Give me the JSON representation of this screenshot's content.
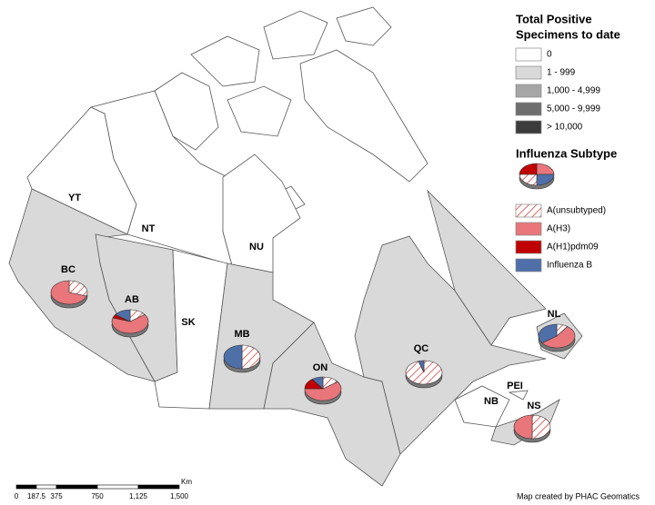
{
  "legend": {
    "title_lines": [
      "Total Positive",
      "Specimens to date"
    ],
    "classes": [
      {
        "label": "0",
        "color": "#ffffff"
      },
      {
        "label": "1 - 999",
        "color": "#d9d9d9"
      },
      {
        "label": "1,000 - 4,999",
        "color": "#a6a6a6"
      },
      {
        "label": "5,000 - 9,999",
        "color": "#6e6e6e"
      },
      {
        "label": "> 10,000",
        "color": "#3c3c3c"
      }
    ],
    "subtype_title": "Influenza Subtype",
    "subtypes": [
      {
        "label": "A(unsubtyped)",
        "color": "#e0443f",
        "hatched": true
      },
      {
        "label": "A(H3)",
        "color": "#e8767a"
      },
      {
        "label": "A(H1)pdm09",
        "color": "#c00000"
      },
      {
        "label": "Influenza B",
        "color": "#4f6fa8"
      }
    ]
  },
  "provinces": [
    {
      "label": "YT",
      "class": 0
    },
    {
      "label": "NT",
      "class": 0
    },
    {
      "label": "NU",
      "class": 0
    },
    {
      "label": "BC",
      "class": 1,
      "shares": [
        30,
        70,
        0,
        0
      ]
    },
    {
      "label": "AB",
      "class": 1,
      "shares": [
        15,
        65,
        5,
        15
      ]
    },
    {
      "label": "SK",
      "class": 0
    },
    {
      "label": "MB",
      "class": 1,
      "shares": [
        50,
        0,
        0,
        50
      ]
    },
    {
      "label": "ON",
      "class": 1,
      "shares": [
        15,
        60,
        15,
        10
      ]
    },
    {
      "label": "QC",
      "class": 1,
      "shares": [
        95,
        0,
        0,
        5
      ]
    },
    {
      "label": "NL",
      "class": 1,
      "shares": [
        10,
        55,
        0,
        35
      ]
    },
    {
      "label": "NB",
      "class": 0
    },
    {
      "label": "PEI",
      "class": 0
    },
    {
      "label": "NS",
      "class": 1,
      "shares": [
        50,
        50,
        0,
        0
      ]
    }
  ],
  "scale_bar": {
    "labels": [
      "0",
      "187.5",
      "375",
      "750",
      "1,125",
      "1,500"
    ],
    "unit": "Km"
  },
  "credit": "Map created by PHAC Geomatics"
}
